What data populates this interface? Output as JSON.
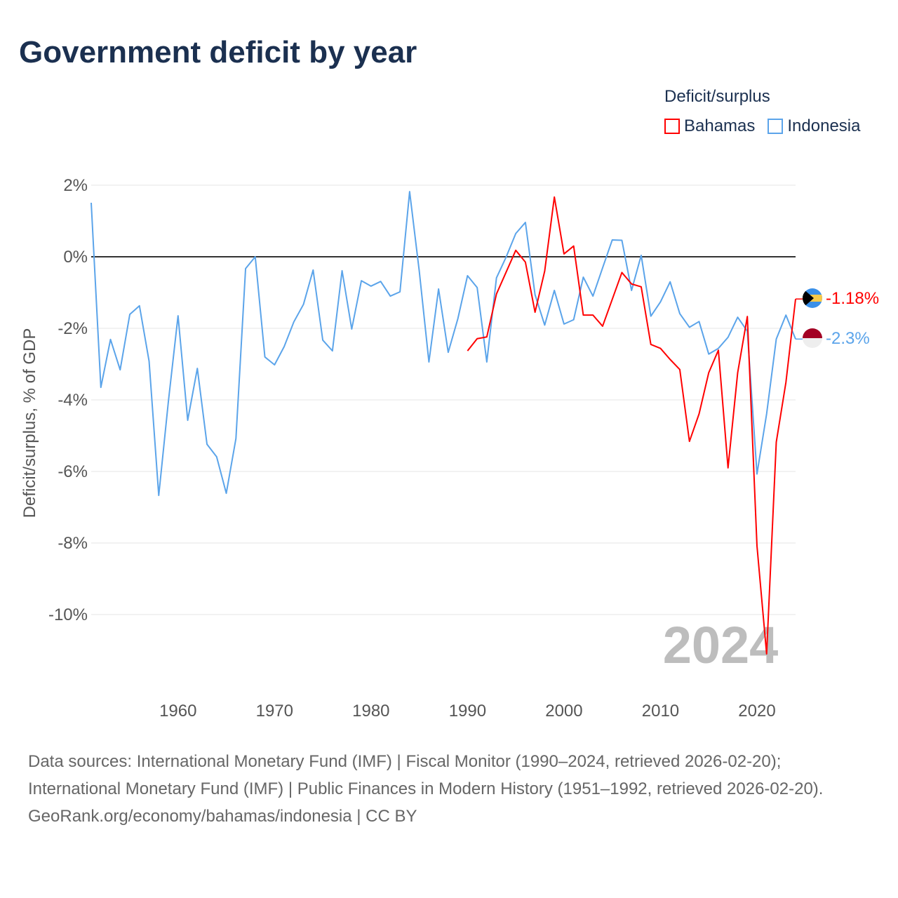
{
  "title": "Government deficit by year",
  "legend": {
    "title": "Deficit/surplus",
    "items": [
      {
        "name": "Bahamas",
        "color": "#ff0000"
      },
      {
        "name": "Indonesia",
        "color": "#5ba4ea"
      }
    ]
  },
  "watermark_year": "2024",
  "end_labels": {
    "bahamas": "-1.18%",
    "indonesia": "-2.3%"
  },
  "chart_data": {
    "type": "line",
    "title": "Government deficit by year",
    "xlabel": "",
    "ylabel": "Deficit/surplus, % of GDP",
    "xlim": [
      1951,
      2024
    ],
    "ylim": [
      -11.5,
      2.2
    ],
    "x_ticks": [
      1960,
      1970,
      1980,
      1990,
      2000,
      2010,
      2020
    ],
    "x_tick_labels": [
      "1960",
      "1970",
      "1980",
      "1990",
      "2000",
      "2010",
      "2020"
    ],
    "y_ticks": [
      2,
      0,
      -2,
      -4,
      -6,
      -8,
      -10
    ],
    "y_tick_labels": [
      "2%",
      "0%",
      "-2%",
      "-4%",
      "-6%",
      "-8%",
      "-10%"
    ],
    "grid": true,
    "legend_position": "top-right",
    "series": [
      {
        "name": "Bahamas",
        "color": "#ff0000",
        "start_year": 1990,
        "values": [
          -2.63,
          -2.29,
          -2.24,
          -1.04,
          -0.43,
          0.18,
          -0.15,
          -1.55,
          -0.4,
          1.67,
          0.08,
          0.3,
          -1.63,
          -1.63,
          -1.94,
          -1.19,
          -0.44,
          -0.76,
          -0.84,
          -2.45,
          -2.56,
          -2.87,
          -3.15,
          -5.16,
          -4.39,
          -3.24,
          -2.61,
          -5.9,
          -3.24,
          -1.67,
          -8.08,
          -11.1,
          -5.18,
          -3.51,
          -1.18
        ]
      },
      {
        "name": "Indonesia",
        "color": "#5ba4ea",
        "start_year": 1951,
        "values": [
          1.51,
          -3.65,
          -2.31,
          -3.16,
          -1.61,
          -1.37,
          -2.92,
          -6.67,
          -4.04,
          -1.65,
          -4.57,
          -3.12,
          -5.24,
          -5.59,
          -6.61,
          -5.08,
          -0.33,
          0.0,
          -2.8,
          -3.02,
          -2.51,
          -1.82,
          -1.33,
          -0.37,
          -2.33,
          -2.63,
          -0.39,
          -2.02,
          -0.67,
          -0.82,
          -0.69,
          -1.1,
          -0.98,
          1.82,
          -0.4,
          -2.94,
          -0.9,
          -2.67,
          -1.73,
          -0.53,
          -0.86,
          -2.94,
          -0.59,
          -0.01,
          0.65,
          0.96,
          -1.06,
          -1.91,
          -0.94,
          -1.88,
          -1.76,
          -0.57,
          -1.1,
          -0.31,
          0.47,
          0.46,
          -0.94,
          0.04,
          -1.66,
          -1.26,
          -0.7,
          -1.59,
          -1.97,
          -1.81,
          -2.72,
          -2.56,
          -2.25,
          -1.69,
          -2.08,
          -6.07,
          -4.39,
          -2.3,
          -1.63,
          -2.3
        ]
      }
    ]
  },
  "footer": {
    "sources": "Data sources: International Monetary Fund (IMF) | Fiscal Monitor (1990–2024, retrieved 2026-02-20); International Monetary Fund (IMF) | Public Finances in Modern History (1951–1992, retrieved 2026-02-20).",
    "credit": "GeoRank.org/economy/bahamas/indonesia | CC BY"
  }
}
